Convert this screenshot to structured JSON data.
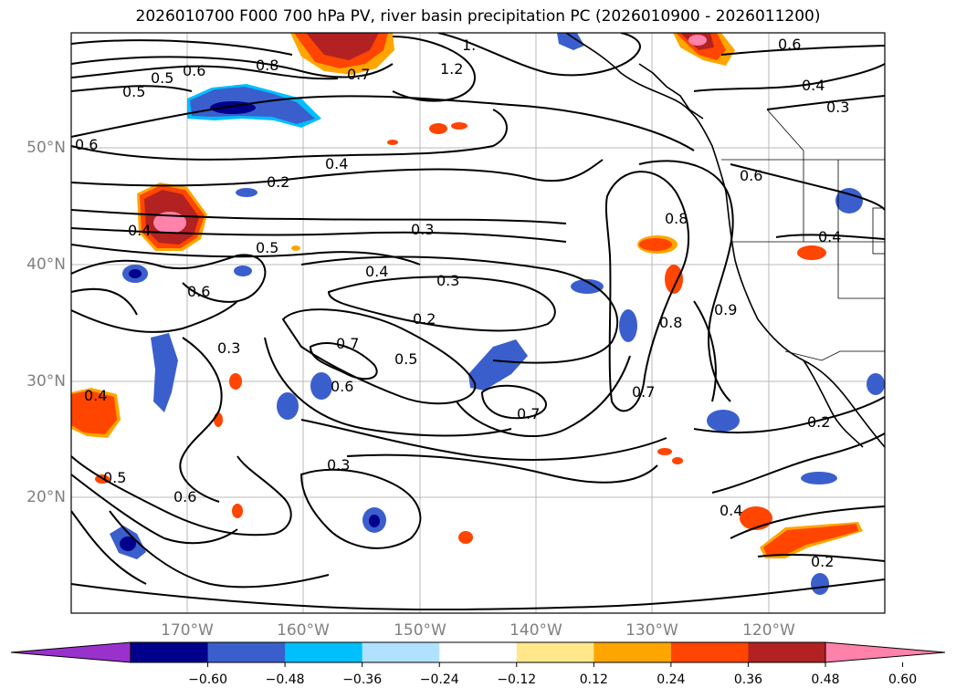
{
  "title": "2026010700 F000 700 hPa PV, river basin precipitation PC (2026010900 - 2026011200)",
  "lat_labels": [
    "50°N",
    "40°N",
    "30°N",
    "20°N"
  ],
  "lon_labels": [
    "170°W",
    "160°W",
    "150°W",
    "140°W",
    "130°W",
    "120°W"
  ],
  "contour_labels": [
    "0.6",
    "0.8",
    "0.5",
    "0.5",
    "0.6",
    "1.2",
    "1.",
    "0.6",
    "0.4",
    "0.3",
    "0.4",
    "0.2",
    "0.4",
    "0.3",
    "0.5",
    "0.4",
    "0.3",
    "0.2",
    "0.6",
    "0.3",
    "0.7",
    "0.5",
    "0.6",
    "0.4",
    "0.7",
    "0.7",
    "0.8",
    "0.9",
    "0.6",
    "0.5",
    "0.3",
    "0.6",
    "0.4",
    "0.2",
    "0.2",
    "0.4",
    "0.8",
    "0.7"
  ],
  "colorbar": {
    "ticks": [
      "−0.60",
      "−0.48",
      "−0.36",
      "−0.24",
      "−0.12",
      "0.12",
      "0.24",
      "0.36",
      "0.48",
      "0.60"
    ],
    "colors": [
      "#9932cc",
      "#00008b",
      "#3a5fcd",
      "#00bfff",
      "#b0e2ff",
      "#ffffff",
      "#ffe78a",
      "#ffa500",
      "#ff4500",
      "#b22222",
      "#ff82ab"
    ],
    "extend": "both"
  },
  "precip_colors": {
    "deep_blue": "#00008b",
    "blue": "#3a5fcd",
    "cyan": "#00bfff",
    "light_blue": "#b0e2ff",
    "yellow": "#ffe78a",
    "orange": "#ffa500",
    "red_orange": "#ff4500",
    "dark_red": "#b22222",
    "pink": "#ff82ab"
  }
}
